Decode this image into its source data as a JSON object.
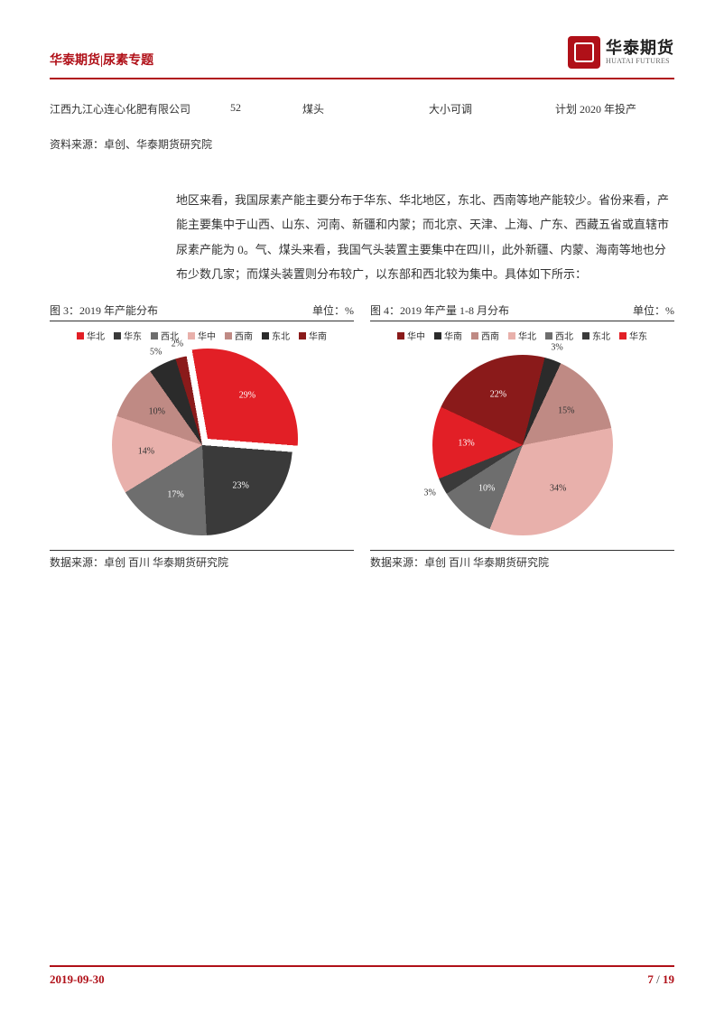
{
  "header": {
    "left": "华泰期货|尿素专题",
    "logo_cn": "华泰期货",
    "logo_en": "HUATAI FUTURES"
  },
  "table": {
    "c1": "江西九江心连心化肥有限公司",
    "c2": "52",
    "c3": "煤头",
    "c4": "大小可调",
    "c5": "计划 2020 年投产"
  },
  "source_top": "资料来源：卓创、华泰期货研究院",
  "body": "地区来看，我国尿素产能主要分布于华东、华北地区，东北、西南等地产能较少。省份来看，产能主要集中于山西、山东、河南、新疆和内蒙；而北京、天津、上海、广东、西藏五省或直辖市尿素产能为 0。气、煤头来看，我国气头装置主要集中在四川，此外新疆、内蒙、海南等地也分布少数几家；而煤头装置则分布较广，以东部和西北较为集中。具体如下所示：",
  "chart3": {
    "title": "图 3：2019 年产能分布",
    "unit": "单位：%",
    "legend": [
      "华北",
      "华东",
      "西北",
      "华中",
      "西南",
      "东北",
      "华南"
    ],
    "colors": [
      "#e21f26",
      "#3a3a3a",
      "#6e6e6e",
      "#e8b0ab",
      "#bf8a84",
      "#2b2b2b",
      "#8a1a1a"
    ],
    "values": [
      29,
      23,
      17,
      14,
      10,
      5,
      2
    ],
    "source": "数据来源：卓创 百川 华泰期货研究院"
  },
  "chart4": {
    "title": "图 4：2019 年产量 1-8 月分布",
    "unit": "单位：%",
    "legend": [
      "华中",
      "华南",
      "西南",
      "华北",
      "西北",
      "东北",
      "华东"
    ],
    "colors": [
      "#8a1a1a",
      "#2b2b2b",
      "#bf8a84",
      "#e8b0ab",
      "#6e6e6e",
      "#3a3a3a",
      "#e21f26"
    ],
    "values": [
      22,
      3,
      15,
      34,
      10,
      3,
      13
    ],
    "source": "数据来源：卓创 百川 华泰期货研究院"
  },
  "footer": {
    "date": "2019-09-30",
    "page_cur": "7",
    "page_sep": " / ",
    "page_total": "19"
  },
  "style": {
    "accent": "#b01018",
    "text": "#333333"
  }
}
